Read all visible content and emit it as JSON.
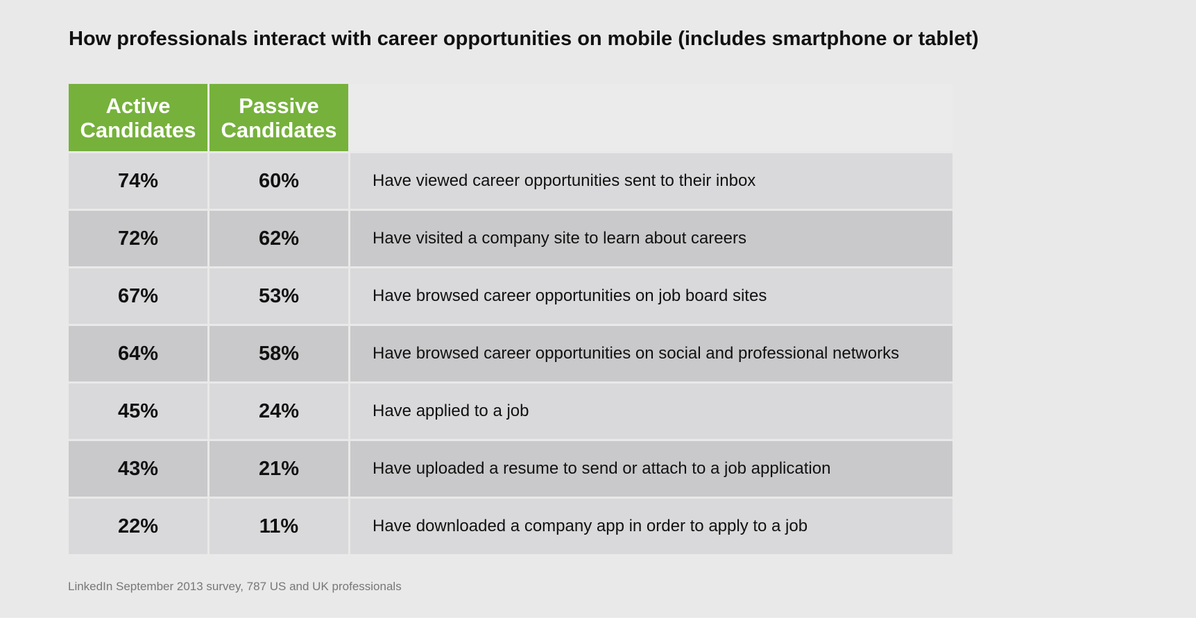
{
  "chart_data": {
    "type": "table",
    "title": "How professionals interact with career opportunities on mobile (includes smartphone or tablet)",
    "columns": [
      "Active Candidates",
      "Passive Candidates"
    ],
    "column_header_lines": [
      [
        "Active",
        "Candidates"
      ],
      [
        "Passive",
        "Candidates"
      ]
    ],
    "header_color": "#76b13c",
    "rows": [
      {
        "active": "74%",
        "passive": "60%",
        "label": "Have viewed career opportunities sent to their inbox"
      },
      {
        "active": "72%",
        "passive": "62%",
        "label": "Have visited a company site to learn about careers"
      },
      {
        "active": "67%",
        "passive": "53%",
        "label": "Have browsed career opportunities on job board sites"
      },
      {
        "active": "64%",
        "passive": "58%",
        "label": "Have browsed career opportunities on social and professional networks"
      },
      {
        "active": "45%",
        "passive": "24%",
        "label": "Have applied to a job"
      },
      {
        "active": "43%",
        "passive": "21%",
        "label": "Have uploaded a resume to send or attach to a job application"
      },
      {
        "active": "22%",
        "passive": "11%",
        "label": "Have downloaded a company app in order to apply to a job"
      }
    ],
    "source": "LinkedIn September 2013 survey, 787 US and UK professionals"
  }
}
